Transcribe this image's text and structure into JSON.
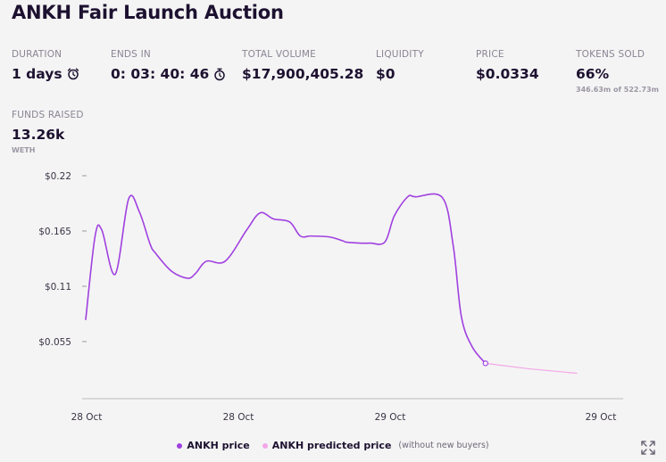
{
  "title": "ANKH Fair Launch Auction",
  "stats": {
    "duration": {
      "label": "DURATION",
      "value": "1 days",
      "icon": "alarm-clock-icon"
    },
    "ends_in": {
      "label": "ENDS IN",
      "value": "0: 03: 40: 46",
      "icon": "stopwatch-icon"
    },
    "total_volume": {
      "label": "TOTAL VOLUME",
      "value": "$17,900,405.28"
    },
    "liquidity": {
      "label": "LIQUIDITY",
      "value": "$0"
    },
    "price": {
      "label": "PRICE",
      "value": "$0.0334"
    },
    "tokens_sold": {
      "label": "TOKENS SOLD",
      "value": "66%",
      "sub": "346.63m of 522.73m"
    },
    "funds_raised": {
      "label": "FUNDS RAISED",
      "value": "13.26k",
      "sub": "WETH"
    }
  },
  "colors": {
    "price_line": "#a040e0",
    "predicted_line": "#f4a6e8",
    "text": "#1d1130"
  },
  "chart_data": {
    "type": "line",
    "y_ticks": [
      "$0.22",
      "$0.165",
      "$0.11",
      "$0.055"
    ],
    "y_tick_values": [
      0.22,
      0.165,
      0.11,
      0.055
    ],
    "ylim": [
      0,
      0.22
    ],
    "x_ticks": [
      "28 Oct",
      "28 Oct",
      "29 Oct",
      "29 Oct"
    ],
    "grid": false,
    "legend_position": "bottom-center",
    "series": [
      {
        "name": "ANKH price",
        "color": "#a040e0",
        "x": [
          0,
          0.35,
          0.6,
          1.1,
          1.6,
          2.0,
          2.4,
          2.6,
          3.2,
          3.8,
          4.1,
          4.5,
          5.2,
          6.0,
          6.5,
          7.0,
          7.6,
          8.0,
          8.4,
          9.1,
          9.6,
          9.7,
          10.2,
          10.6,
          11.15,
          11.5,
          12.0,
          12.3,
          13.3,
          13.7,
          14.0,
          14.4,
          14.9
        ],
        "y": [
          0.077,
          0.16,
          0.166,
          0.122,
          0.197,
          0.184,
          0.152,
          0.143,
          0.125,
          0.118,
          0.123,
          0.135,
          0.135,
          0.166,
          0.183,
          0.177,
          0.174,
          0.16,
          0.16,
          0.159,
          0.155,
          0.154,
          0.153,
          0.153,
          0.154,
          0.18,
          0.199,
          0.199,
          0.198,
          0.15,
          0.08,
          0.05,
          0.0334
        ]
      },
      {
        "name": "ANKH predicted price",
        "color": "#f4a6e8",
        "x": [
          14.9,
          16.5,
          18.3
        ],
        "y": [
          0.0334,
          0.028,
          0.0235
        ]
      }
    ],
    "xlim": [
      0,
      18.6
    ]
  },
  "legend": {
    "price_label": "ANKH price",
    "predicted_label": "ANKH predicted price",
    "predicted_note": "(without new buyers)"
  },
  "expand_icon": "expand-arrows-icon"
}
